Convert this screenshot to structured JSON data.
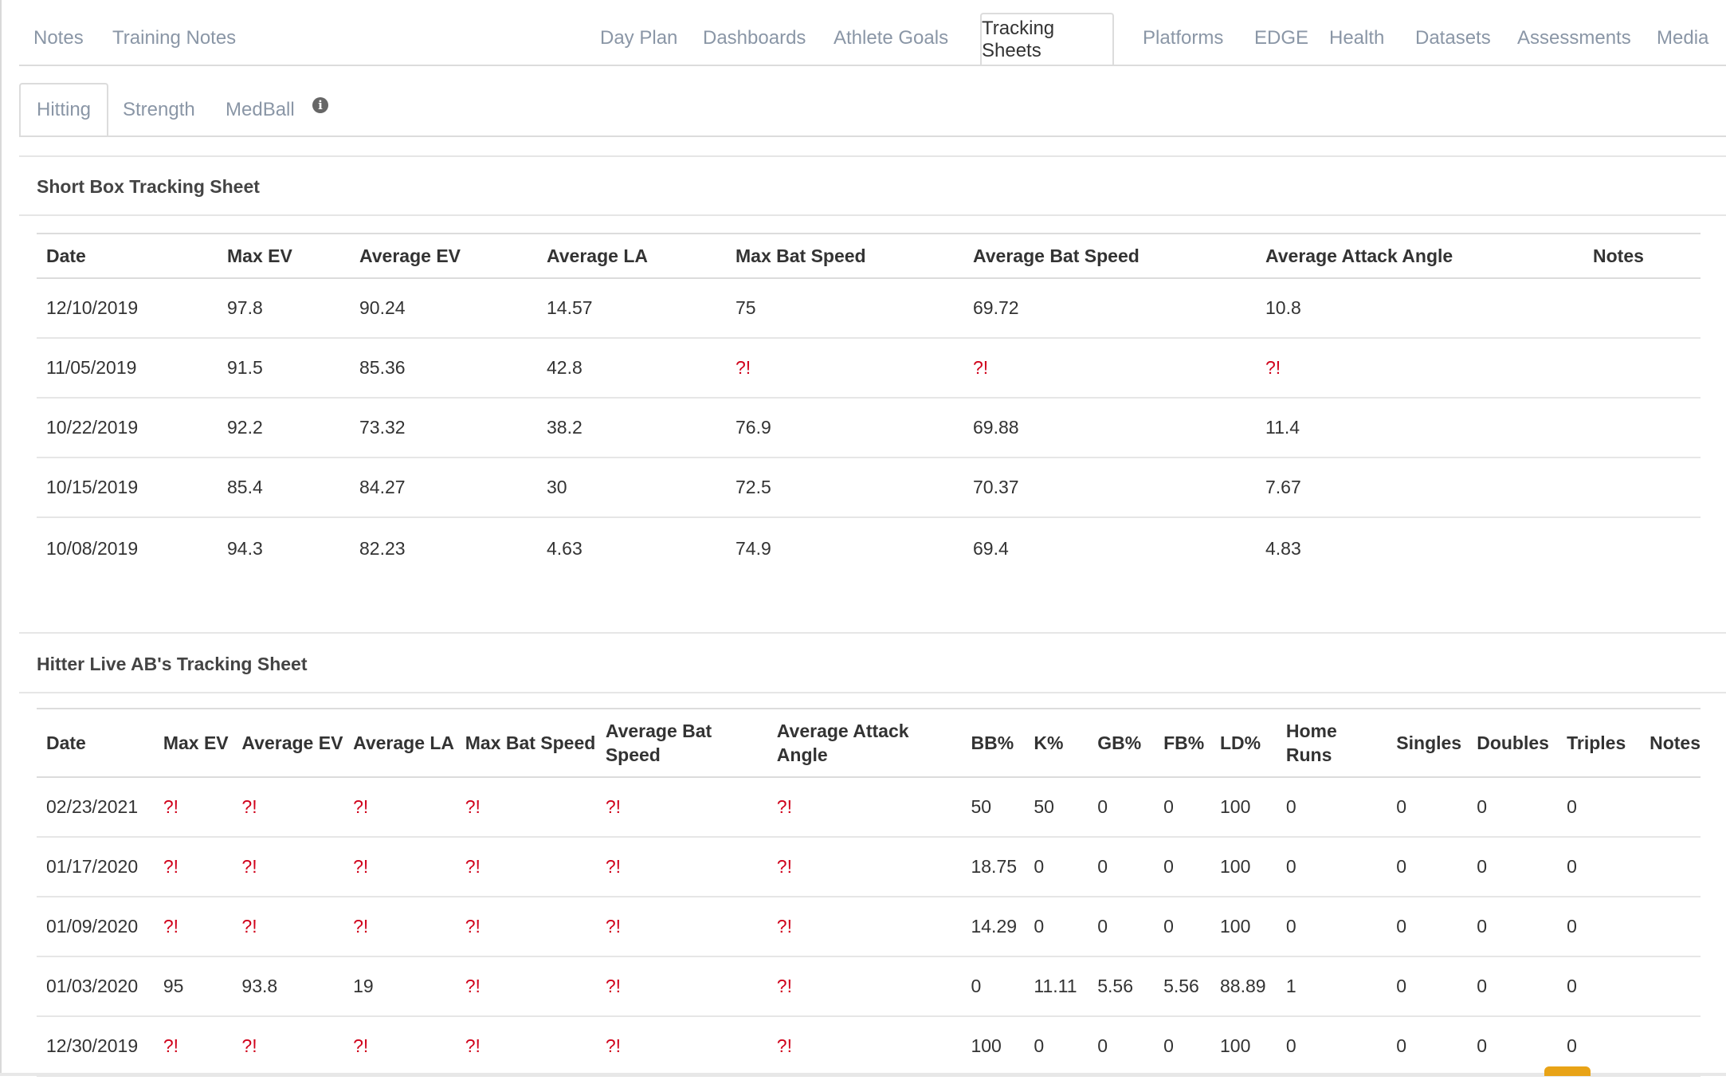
{
  "top_tabs": {
    "left": [
      "Notes",
      "Training Notes"
    ],
    "right": [
      "Day Plan",
      "Dashboards",
      "Athlete Goals",
      "Tracking Sheets",
      "Platforms",
      "EDGE",
      "Health",
      "Datasets",
      "Assessments",
      "Media"
    ],
    "active": "Tracking Sheets"
  },
  "sub_tabs": {
    "items": [
      "Hitting",
      "Strength",
      "MedBall"
    ],
    "active": "Hitting",
    "info_icon": "info-icon"
  },
  "short_box": {
    "title": "Short Box Tracking Sheet",
    "columns": [
      "Date",
      "Max EV",
      "Average EV",
      "Average LA",
      "Max Bat Speed",
      "Average Bat Speed",
      "Average Attack Angle",
      "Notes"
    ],
    "rows": [
      [
        "12/10/2019",
        "97.8",
        "90.24",
        "14.57",
        "75",
        "69.72",
        "10.8",
        ""
      ],
      [
        "11/05/2019",
        "91.5",
        "85.36",
        "42.8",
        "?!",
        "?!",
        "?!",
        ""
      ],
      [
        "10/22/2019",
        "92.2",
        "73.32",
        "38.2",
        "76.9",
        "69.88",
        "11.4",
        ""
      ],
      [
        "10/15/2019",
        "85.4",
        "84.27",
        "30",
        "72.5",
        "70.37",
        "7.67",
        ""
      ],
      [
        "10/08/2019",
        "94.3",
        "82.23",
        "4.63",
        "74.9",
        "69.4",
        "4.83",
        ""
      ]
    ]
  },
  "live_ab": {
    "title": "Hitter Live AB's Tracking Sheet",
    "columns": [
      "Date",
      "Max EV",
      "Average EV",
      "Average LA",
      "Max Bat Speed",
      "Average Bat Speed",
      "Average Attack Angle",
      "BB%",
      "K%",
      "GB%",
      "FB%",
      "LD%",
      "Home Runs",
      "Singles",
      "Doubles",
      "Triples",
      "Notes"
    ],
    "rows": [
      [
        "02/23/2021",
        "?!",
        "?!",
        "?!",
        "?!",
        "?!",
        "?!",
        "50",
        "50",
        "0",
        "0",
        "100",
        "0",
        "0",
        "0",
        "0",
        ""
      ],
      [
        "01/17/2020",
        "?!",
        "?!",
        "?!",
        "?!",
        "?!",
        "?!",
        "18.75",
        "0",
        "0",
        "0",
        "100",
        "0",
        "0",
        "0",
        "0",
        ""
      ],
      [
        "01/09/2020",
        "?!",
        "?!",
        "?!",
        "?!",
        "?!",
        "?!",
        "14.29",
        "0",
        "0",
        "0",
        "100",
        "0",
        "0",
        "0",
        "0",
        ""
      ],
      [
        "01/03/2020",
        "95",
        "93.8",
        "19",
        "?!",
        "?!",
        "?!",
        "0",
        "11.11",
        "5.56",
        "5.56",
        "88.89",
        "1",
        "0",
        "0",
        "0",
        ""
      ],
      [
        "12/30/2019",
        "?!",
        "?!",
        "?!",
        "?!",
        "?!",
        "?!",
        "100",
        "0",
        "0",
        "0",
        "100",
        "0",
        "0",
        "0",
        "0",
        ""
      ]
    ]
  },
  "colors": {
    "warning": "#d0021b",
    "tab_text": "#8a96a6",
    "chat_accent": "#e8a317"
  }
}
